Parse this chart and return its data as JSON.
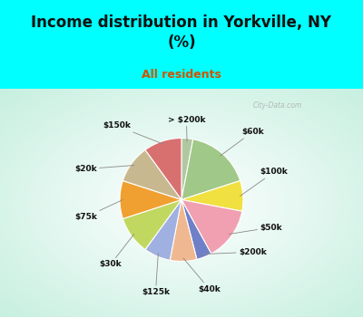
{
  "title": "Income distribution in Yorkville, NY\n(%)",
  "subtitle": "All residents",
  "title_color": "#111111",
  "subtitle_color": "#cc5500",
  "cyan_color": "#00ffff",
  "labels": [
    "> $200k",
    "$60k",
    "$100k",
    "$50k",
    "$200k",
    "$40k",
    "$125k",
    "$30k",
    "$75k",
    "$20k",
    "$150k"
  ],
  "values": [
    3,
    17,
    8,
    14,
    4,
    7,
    7,
    10,
    10,
    10,
    10
  ],
  "colors": [
    "#b0c8a0",
    "#a0c888",
    "#f0e040",
    "#f0a0b0",
    "#7080c8",
    "#f0b890",
    "#a0b0e0",
    "#c0d860",
    "#f0a030",
    "#c8b890",
    "#d87070"
  ],
  "startangle": 90,
  "watermark": "City-Data.com"
}
